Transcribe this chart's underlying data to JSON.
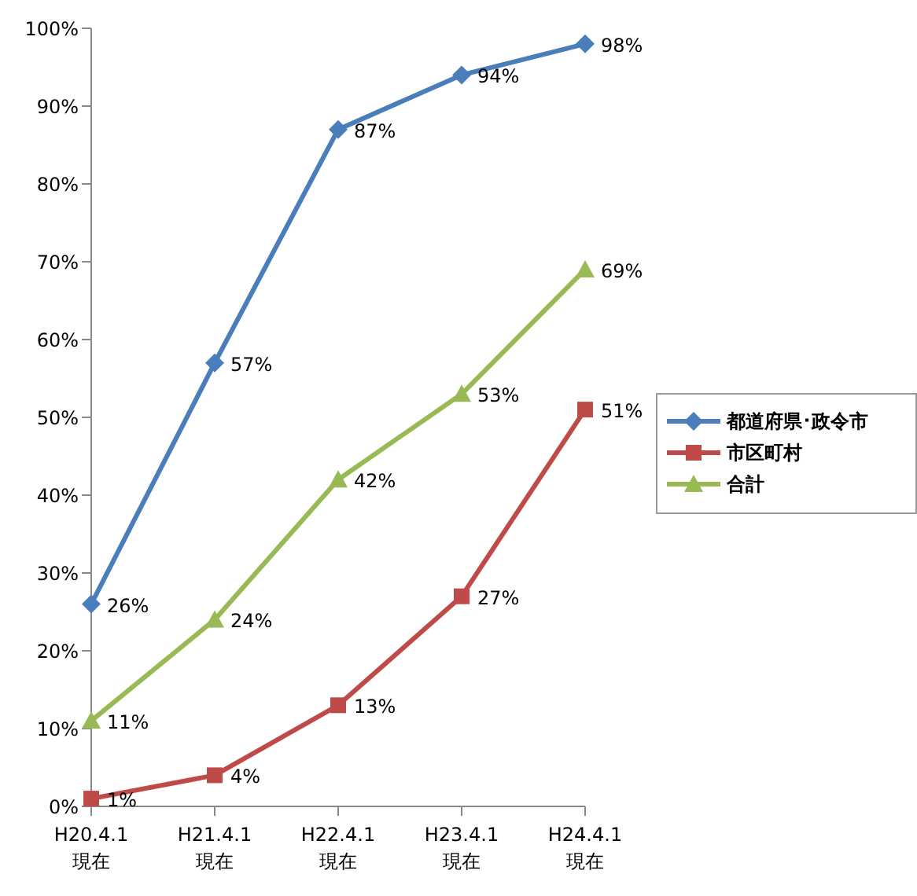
{
  "chart_data": {
    "type": "line",
    "categories": [
      "H20.4.1\n現在",
      "H21.4.1\n現在",
      "H22.4.1\n現在",
      "H23.4.1\n現在",
      "H24.4.1\n現在"
    ],
    "series": [
      {
        "name": "都道府県･政令市",
        "color": "#4a7ebb",
        "marker": "diamond",
        "values": [
          26,
          57,
          87,
          94,
          98
        ],
        "value_labels": [
          "26%",
          "57%",
          "87%",
          "94%",
          "98%"
        ]
      },
      {
        "name": "市区町村",
        "color": "#be4b48",
        "marker": "square",
        "values": [
          1,
          4,
          13,
          27,
          51
        ],
        "value_labels": [
          "1%",
          "4%",
          "13%",
          "27%",
          "51%"
        ]
      },
      {
        "name": "合計",
        "color": "#98b954",
        "marker": "triangle",
        "values": [
          11,
          24,
          42,
          53,
          69
        ],
        "value_labels": [
          "11%",
          "24%",
          "42%",
          "53%",
          "69%"
        ]
      }
    ],
    "ylim": [
      0,
      100
    ],
    "yticks": [
      {
        "value": 0,
        "label": "0%"
      },
      {
        "value": 10,
        "label": "10%"
      },
      {
        "value": 20,
        "label": "20%"
      },
      {
        "value": 30,
        "label": "30%"
      },
      {
        "value": 40,
        "label": "40%"
      },
      {
        "value": 50,
        "label": "50%"
      },
      {
        "value": 60,
        "label": "60%"
      },
      {
        "value": 70,
        "label": "70%"
      },
      {
        "value": 80,
        "label": "80%"
      },
      {
        "value": 90,
        "label": "90%"
      },
      {
        "value": 100,
        "label": "100%"
      }
    ],
    "grid": false,
    "legend": "right",
    "line_style": "solid"
  }
}
